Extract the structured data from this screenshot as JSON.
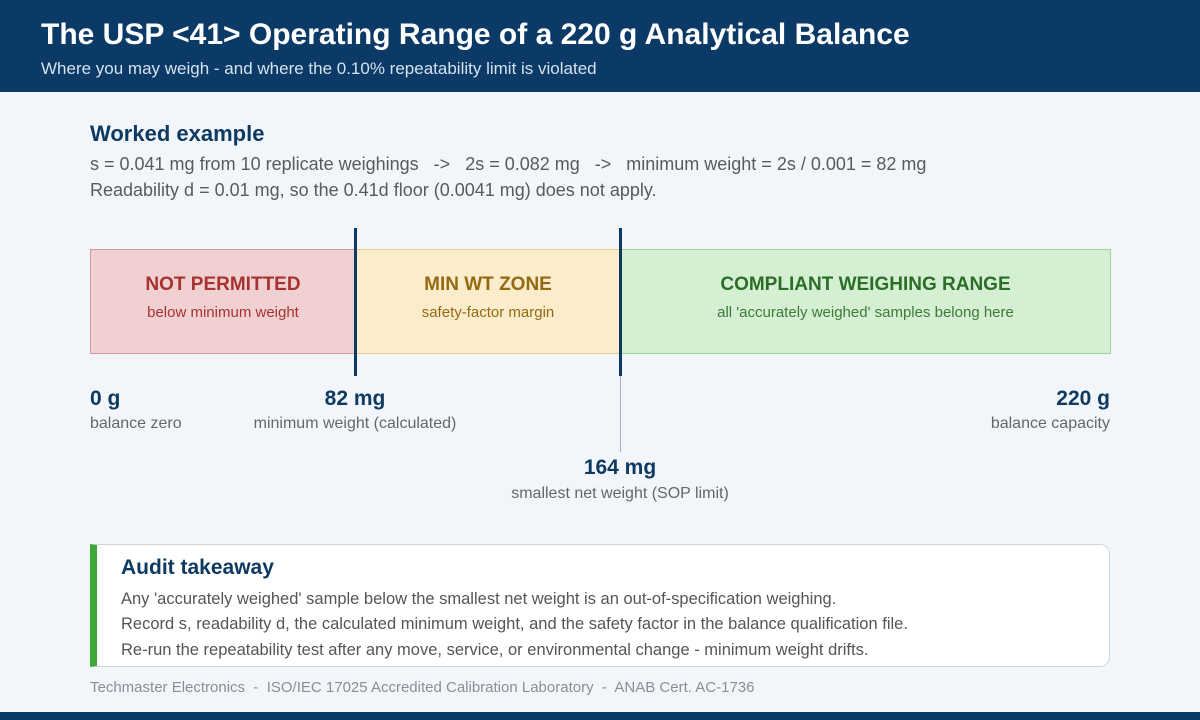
{
  "header": {
    "title": "The USP <41> Operating Range of a 220 g Analytical Balance",
    "subtitle": "Where you may weigh - and where the 0.10% repeatability limit is violated"
  },
  "example": {
    "title": "Worked example",
    "line1": "s = 0.041 mg from 10 replicate weighings   ->   2s = 0.082 mg   ->   minimum weight = 2s / 0.001 = 82 mg",
    "line2": "Readability d = 0.01 mg, so the 0.41d floor (0.0041 mg) does not apply."
  },
  "zones": [
    {
      "title": "NOT PERMITTED",
      "subtitle": "below minimum weight",
      "color": "#f1d0d1"
    },
    {
      "title": "MIN WT ZONE",
      "subtitle": "safety-factor margin",
      "color": "#fbeccb"
    },
    {
      "title": "COMPLIANT WEIGHING RANGE",
      "subtitle": "all 'accurately weighed' samples belong here",
      "color": "#d4efd2"
    }
  ],
  "markers": {
    "zero": {
      "value": "0 g",
      "label": "balance zero"
    },
    "min_weight": {
      "value": "82 mg",
      "label": "minimum weight (calculated)"
    },
    "smallest_net": {
      "value": "164 mg",
      "label": "smallest net weight (SOP limit)"
    },
    "capacity": {
      "value": "220 g",
      "label": "balance capacity"
    }
  },
  "audit": {
    "title": "Audit takeaway",
    "lines": [
      "Any 'accurately weighed' sample below the smallest net weight is an out-of-specification weighing.",
      "Record s, readability d, the calculated minimum weight, and the safety factor in the balance qualification file.",
      "Re-run the repeatability test after any move, service, or environmental change - minimum weight drifts."
    ],
    "accent_color": "#3ea83a"
  },
  "footer": "Techmaster Electronics  -  ISO/IEC 17025 Accredited Calibration Laboratory  -  ANAB Cert. AC-1736"
}
